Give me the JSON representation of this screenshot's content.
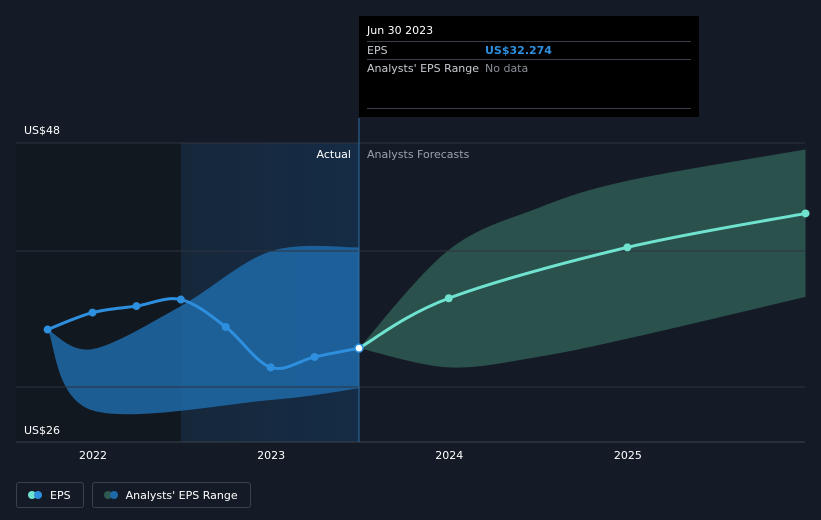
{
  "colors": {
    "eps_actual": "#2e8fde",
    "eps_forecast": "#6fe3cf",
    "range_actual": "#1e6aa8",
    "range_forecast": "#2e5a52",
    "background": "#151b26"
  },
  "tooltip": {
    "date": "Jun 30 2023",
    "rows": [
      {
        "key": "EPS",
        "value": "US$32.274"
      },
      {
        "key": "Analysts' EPS Range",
        "value": "No data"
      }
    ]
  },
  "regions": {
    "actual_label": "Actual",
    "forecast_label": "Analysts Forecasts"
  },
  "legend": {
    "eps": "EPS",
    "range": "Analysts' EPS Range"
  },
  "chart_data": {
    "type": "line",
    "x_axis": {
      "type": "date",
      "ticks": [
        "2022",
        "2023",
        "2024",
        "2025"
      ],
      "range": [
        "2021-07-01",
        "2025-12-31"
      ]
    },
    "y_axis": {
      "labels": [
        "US$48",
        "US$26"
      ],
      "ylim": [
        26,
        48
      ],
      "grid": true
    },
    "series": [
      {
        "name": "EPS",
        "kind": "actual",
        "points": [
          {
            "x": "2021-09-30",
            "y": 33.7
          },
          {
            "x": "2021-12-31",
            "y": 35.0
          },
          {
            "x": "2022-03-31",
            "y": 35.5
          },
          {
            "x": "2022-06-30",
            "y": 36.0
          },
          {
            "x": "2022-09-30",
            "y": 33.9
          },
          {
            "x": "2022-12-31",
            "y": 30.8
          },
          {
            "x": "2023-03-31",
            "y": 31.6
          },
          {
            "x": "2023-06-30",
            "y": 32.274
          }
        ]
      },
      {
        "name": "EPS",
        "kind": "forecast",
        "points": [
          {
            "x": "2023-06-30",
            "y": 32.274
          },
          {
            "x": "2023-12-31",
            "y": 36.1
          },
          {
            "x": "2024-12-31",
            "y": 40.0
          },
          {
            "x": "2025-12-31",
            "y": 42.6
          }
        ]
      },
      {
        "name": "Analysts' EPS Range",
        "kind": "range_actual",
        "upper": [
          {
            "x": "2021-09-30",
            "y": 33.7
          },
          {
            "x": "2021-12-31",
            "y": 32.2
          },
          {
            "x": "2022-06-30",
            "y": 35.5
          },
          {
            "x": "2022-12-31",
            "y": 39.7
          },
          {
            "x": "2023-06-30",
            "y": 40.0
          }
        ],
        "lower": [
          {
            "x": "2021-09-30",
            "y": 33.7
          },
          {
            "x": "2021-12-31",
            "y": 27.5
          },
          {
            "x": "2022-12-31",
            "y": 28.3
          },
          {
            "x": "2023-06-30",
            "y": 29.2
          }
        ]
      },
      {
        "name": "Analysts' EPS Range",
        "kind": "range_forecast",
        "upper": [
          {
            "x": "2023-06-30",
            "y": 32.274
          },
          {
            "x": "2023-12-31",
            "y": 39.8
          },
          {
            "x": "2024-06-30",
            "y": 43.0
          },
          {
            "x": "2024-12-31",
            "y": 45.1
          },
          {
            "x": "2025-12-31",
            "y": 47.5
          }
        ],
        "lower": [
          {
            "x": "2023-06-30",
            "y": 32.274
          },
          {
            "x": "2023-12-31",
            "y": 30.8
          },
          {
            "x": "2024-06-30",
            "y": 31.6
          },
          {
            "x": "2024-12-31",
            "y": 33.0
          },
          {
            "x": "2025-12-31",
            "y": 36.2
          }
        ]
      }
    ]
  }
}
